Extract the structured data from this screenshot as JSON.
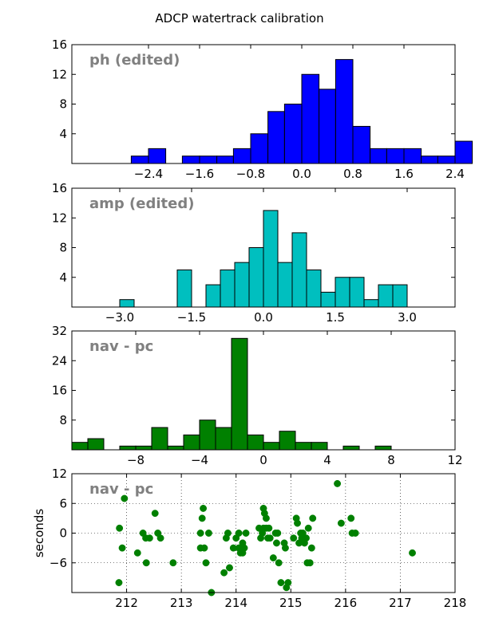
{
  "figure_title": "ADCP watertrack calibration",
  "chart_data": [
    {
      "type": "bar",
      "panel_label": "ph (edited)",
      "bar_color": "#0000ff",
      "xlim": [
        -3.6,
        2.4
      ],
      "ylim": [
        0,
        16
      ],
      "xticks": [
        -2.4,
        -1.6,
        -0.8,
        0.0,
        0.8,
        1.6,
        2.4
      ],
      "xtick_labels": [
        "−2.4",
        "−1.6",
        "−0.8",
        "0.0",
        "0.8",
        "1.6",
        "2.4"
      ],
      "yticks": [
        4,
        8,
        12,
        16
      ],
      "ytick_labels": [
        "4",
        "8",
        "12",
        "16"
      ],
      "bins": [
        {
          "x0": -2.93,
          "x1": -2.67,
          "count": 0
        },
        {
          "x0": -2.67,
          "x1": -2.4,
          "count": 1
        },
        {
          "x0": -2.4,
          "x1": -2.13,
          "count": 2
        },
        {
          "x0": -2.13,
          "x1": -1.87,
          "count": 0
        },
        {
          "x0": -1.87,
          "x1": -1.6,
          "count": 1
        },
        {
          "x0": -1.6,
          "x1": -1.33,
          "count": 1
        },
        {
          "x0": -1.33,
          "x1": -1.07,
          "count": 1
        },
        {
          "x0": -1.07,
          "x1": -0.8,
          "count": 2
        },
        {
          "x0": -0.8,
          "x1": -0.53,
          "count": 4
        },
        {
          "x0": -0.53,
          "x1": -0.27,
          "count": 7
        },
        {
          "x0": -0.27,
          "x1": 0.0,
          "count": 8
        },
        {
          "x0": 0.0,
          "x1": 0.27,
          "count": 12
        },
        {
          "x0": 0.27,
          "x1": 0.53,
          "count": 10
        },
        {
          "x0": 0.53,
          "x1": 0.8,
          "count": 14
        },
        {
          "x0": 0.8,
          "x1": 1.07,
          "count": 5
        },
        {
          "x0": 1.07,
          "x1": 1.33,
          "count": 2
        },
        {
          "x0": 1.33,
          "x1": 1.6,
          "count": 2
        },
        {
          "x0": 1.6,
          "x1": 1.87,
          "count": 2
        },
        {
          "x0": 1.87,
          "x1": 2.13,
          "count": 1
        },
        {
          "x0": 2.13,
          "x1": 2.4,
          "count": 1
        },
        {
          "x0": 2.4,
          "x1": 2.67,
          "count": 3
        }
      ]
    },
    {
      "type": "bar",
      "panel_label": "amp (edited)",
      "bar_color": "#00bfbf",
      "xlim": [
        -4.0,
        4.0
      ],
      "ylim": [
        0,
        16
      ],
      "xticks": [
        -3.0,
        -1.5,
        0.0,
        1.5,
        3.0
      ],
      "xtick_labels": [
        "−3.0",
        "−1.5",
        "0.0",
        "1.5",
        "3.0"
      ],
      "yticks": [
        4,
        8,
        12,
        16
      ],
      "ytick_labels": [
        "4",
        "8",
        "12",
        "16"
      ],
      "bins": [
        {
          "x0": -3.6,
          "x1": -3.3,
          "count": 0
        },
        {
          "x0": -3.3,
          "x1": -3.0,
          "count": 0
        },
        {
          "x0": -3.0,
          "x1": -2.7,
          "count": 1
        },
        {
          "x0": -2.7,
          "x1": -2.4,
          "count": 0
        },
        {
          "x0": -2.4,
          "x1": -2.1,
          "count": 0
        },
        {
          "x0": -2.1,
          "x1": -1.8,
          "count": 0
        },
        {
          "x0": -1.8,
          "x1": -1.5,
          "count": 5
        },
        {
          "x0": -1.5,
          "x1": -1.2,
          "count": 0
        },
        {
          "x0": -1.2,
          "x1": -0.9,
          "count": 3
        },
        {
          "x0": -0.9,
          "x1": -0.6,
          "count": 5
        },
        {
          "x0": -0.6,
          "x1": -0.3,
          "count": 6
        },
        {
          "x0": -0.3,
          "x1": 0.0,
          "count": 8
        },
        {
          "x0": 0.0,
          "x1": 0.3,
          "count": 13
        },
        {
          "x0": 0.3,
          "x1": 0.6,
          "count": 6
        },
        {
          "x0": 0.6,
          "x1": 0.9,
          "count": 10
        },
        {
          "x0": 0.9,
          "x1": 1.2,
          "count": 5
        },
        {
          "x0": 1.2,
          "x1": 1.5,
          "count": 2
        },
        {
          "x0": 1.5,
          "x1": 1.8,
          "count": 4
        },
        {
          "x0": 1.8,
          "x1": 2.1,
          "count": 4
        },
        {
          "x0": 2.1,
          "x1": 2.4,
          "count": 1
        },
        {
          "x0": 2.4,
          "x1": 2.7,
          "count": 3
        },
        {
          "x0": 2.7,
          "x1": 3.0,
          "count": 3
        }
      ]
    },
    {
      "type": "bar",
      "panel_label": "nav - pc",
      "bar_color": "#008000",
      "xlim": [
        -12,
        12
      ],
      "ylim": [
        0,
        32
      ],
      "xticks": [
        -8,
        -4,
        0,
        4,
        8,
        12
      ],
      "xtick_labels": [
        "−8",
        "−4",
        "0",
        "4",
        "8",
        "12"
      ],
      "yticks": [
        8,
        16,
        24,
        32
      ],
      "ytick_labels": [
        "8",
        "16",
        "24",
        "32"
      ],
      "bins": [
        {
          "x0": -12,
          "x1": -11,
          "count": 2
        },
        {
          "x0": -11,
          "x1": -10,
          "count": 3
        },
        {
          "x0": -10,
          "x1": -9,
          "count": 0
        },
        {
          "x0": -9,
          "x1": -8,
          "count": 1
        },
        {
          "x0": -8,
          "x1": -7,
          "count": 1
        },
        {
          "x0": -7,
          "x1": -6,
          "count": 6
        },
        {
          "x0": -6,
          "x1": -5,
          "count": 1
        },
        {
          "x0": -5,
          "x1": -4,
          "count": 4
        },
        {
          "x0": -4,
          "x1": -3,
          "count": 8
        },
        {
          "x0": -3,
          "x1": -2,
          "count": 6
        },
        {
          "x0": -2,
          "x1": -1,
          "count": 30
        },
        {
          "x0": -1,
          "x1": 0,
          "count": 4
        },
        {
          "x0": 0,
          "x1": 1,
          "count": 2
        },
        {
          "x0": 1,
          "x1": 2,
          "count": 5
        },
        {
          "x0": 2,
          "x1": 3,
          "count": 2
        },
        {
          "x0": 3,
          "x1": 4,
          "count": 2
        },
        {
          "x0": 4,
          "x1": 5,
          "count": 0
        },
        {
          "x0": 5,
          "x1": 6,
          "count": 1
        },
        {
          "x0": 6,
          "x1": 7,
          "count": 0
        },
        {
          "x0": 7,
          "x1": 8,
          "count": 1
        }
      ]
    },
    {
      "type": "scatter",
      "panel_label": "nav - pc",
      "ylabel": "seconds",
      "point_color": "#008000",
      "xlim": [
        211,
        218
      ],
      "ylim": [
        -12,
        12
      ],
      "xticks": [
        212,
        213,
        214,
        215,
        216,
        217,
        218
      ],
      "xtick_labels": [
        "212",
        "213",
        "214",
        "215",
        "216",
        "217",
        "218"
      ],
      "yticks": [
        -6,
        0,
        6,
        12
      ],
      "ytick_labels": [
        "−6",
        "0",
        "6",
        "12"
      ],
      "grid": true,
      "points": [
        {
          "x": 211.87,
          "y": 1
        },
        {
          "x": 211.92,
          "y": -3
        },
        {
          "x": 211.96,
          "y": 7
        },
        {
          "x": 211.86,
          "y": -10
        },
        {
          "x": 212.2,
          "y": -4
        },
        {
          "x": 212.3,
          "y": 0
        },
        {
          "x": 212.35,
          "y": -1
        },
        {
          "x": 212.36,
          "y": -6
        },
        {
          "x": 212.42,
          "y": -1
        },
        {
          "x": 212.52,
          "y": 4
        },
        {
          "x": 212.57,
          "y": 0
        },
        {
          "x": 212.62,
          "y": -1
        },
        {
          "x": 212.85,
          "y": -6
        },
        {
          "x": 213.35,
          "y": -3
        },
        {
          "x": 213.38,
          "y": 3
        },
        {
          "x": 213.4,
          "y": 5
        },
        {
          "x": 213.42,
          "y": -3
        },
        {
          "x": 213.45,
          "y": -6
        },
        {
          "x": 213.5,
          "y": 0
        },
        {
          "x": 213.35,
          "y": 0
        },
        {
          "x": 213.55,
          "y": -12
        },
        {
          "x": 213.78,
          "y": -8
        },
        {
          "x": 213.82,
          "y": -1
        },
        {
          "x": 213.85,
          "y": 0
        },
        {
          "x": 213.88,
          "y": -7
        },
        {
          "x": 213.95,
          "y": -3
        },
        {
          "x": 214.0,
          "y": -1
        },
        {
          "x": 214.05,
          "y": 0
        },
        {
          "x": 214.08,
          "y": -4
        },
        {
          "x": 214.12,
          "y": -2
        },
        {
          "x": 214.12,
          "y": -4
        },
        {
          "x": 214.15,
          "y": -3
        },
        {
          "x": 214.18,
          "y": 0
        },
        {
          "x": 214.05,
          "y": -3
        },
        {
          "x": 214.42,
          "y": 1
        },
        {
          "x": 214.45,
          "y": -1
        },
        {
          "x": 214.48,
          "y": 0
        },
        {
          "x": 214.5,
          "y": 1
        },
        {
          "x": 214.5,
          "y": 5
        },
        {
          "x": 214.52,
          "y": 4
        },
        {
          "x": 214.55,
          "y": 3
        },
        {
          "x": 214.55,
          "y": 1
        },
        {
          "x": 214.58,
          "y": -1
        },
        {
          "x": 214.6,
          "y": 1
        },
        {
          "x": 214.62,
          "y": -1
        },
        {
          "x": 214.68,
          "y": -5
        },
        {
          "x": 214.72,
          "y": 0
        },
        {
          "x": 214.74,
          "y": -2
        },
        {
          "x": 214.76,
          "y": 0
        },
        {
          "x": 214.78,
          "y": -6
        },
        {
          "x": 214.82,
          "y": -10
        },
        {
          "x": 214.88,
          "y": -2
        },
        {
          "x": 214.9,
          "y": -3
        },
        {
          "x": 214.92,
          "y": -11
        },
        {
          "x": 214.95,
          "y": -10
        },
        {
          "x": 215.05,
          "y": -1
        },
        {
          "x": 215.1,
          "y": 3
        },
        {
          "x": 215.12,
          "y": 2
        },
        {
          "x": 215.15,
          "y": -2
        },
        {
          "x": 215.18,
          "y": 0
        },
        {
          "x": 215.2,
          "y": -1
        },
        {
          "x": 215.22,
          "y": 0
        },
        {
          "x": 215.25,
          "y": -2
        },
        {
          "x": 215.28,
          "y": -1
        },
        {
          "x": 215.3,
          "y": -6
        },
        {
          "x": 215.32,
          "y": 1
        },
        {
          "x": 215.35,
          "y": -6
        },
        {
          "x": 215.38,
          "y": -3
        },
        {
          "x": 215.4,
          "y": 3
        },
        {
          "x": 215.85,
          "y": 10
        },
        {
          "x": 215.92,
          "y": 2
        },
        {
          "x": 216.1,
          "y": 3
        },
        {
          "x": 216.12,
          "y": 0
        },
        {
          "x": 216.18,
          "y": 0
        },
        {
          "x": 217.22,
          "y": -4
        }
      ]
    }
  ]
}
